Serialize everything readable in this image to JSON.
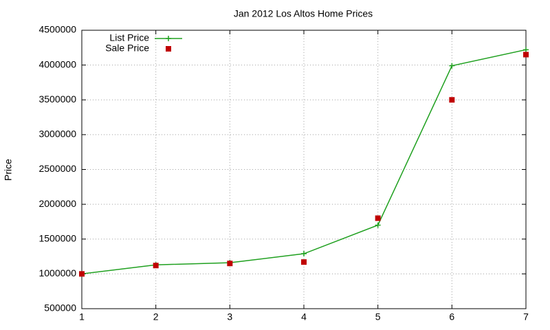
{
  "chart_data": {
    "type": "line",
    "title": "Jan 2012 Los Altos Home Prices",
    "y_label": "Price",
    "x": [
      1,
      2,
      3,
      4,
      5,
      6,
      7
    ],
    "series": [
      {
        "name": "List Price",
        "color": "#1fa01f",
        "mode": "lines+markers",
        "marker": "plus",
        "values": [
          1000000,
          1130000,
          1160000,
          1290000,
          1700000,
          3990000,
          4220000
        ]
      },
      {
        "name": "Sale Price",
        "color": "#c00000",
        "mode": "markers",
        "marker": "square",
        "values": [
          1000000,
          1120000,
          1150000,
          1170000,
          1800000,
          3500000,
          4150000
        ]
      }
    ],
    "xlim": [
      1,
      7
    ],
    "xticks": [
      1,
      2,
      3,
      4,
      5,
      6,
      7
    ],
    "ylim": [
      500000,
      4500000
    ],
    "yticks": [
      500000,
      1000000,
      1500000,
      2000000,
      2500000,
      3000000,
      3500000,
      4000000,
      4500000
    ],
    "grid": true,
    "legend": "top-left"
  }
}
